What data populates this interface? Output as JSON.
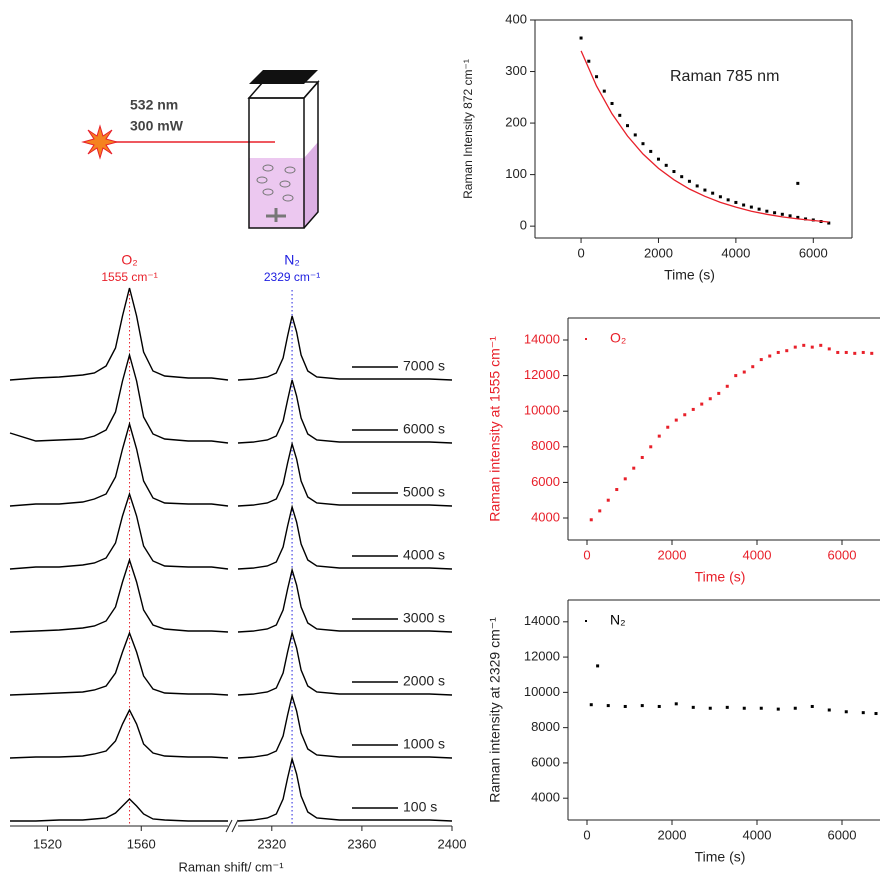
{
  "diagram": {
    "wavelength": "532 nm",
    "power": "300 mW"
  },
  "chart_data": [
    {
      "type": "spectra",
      "xlabel": "Raman shift/ cm⁻¹",
      "segments": [
        {
          "xlim": [
            1504,
            1597
          ],
          "xticks": [
            1520,
            1560
          ],
          "x": [
            1504,
            1515,
            1525,
            1535,
            1540,
            1545,
            1549,
            1552,
            1555,
            1558,
            1561,
            1565,
            1570,
            1580,
            1590,
            1597
          ]
        },
        {
          "xlim": [
            2305,
            2400
          ],
          "xticks": [
            2320,
            2360,
            2400
          ],
          "x": [
            2305,
            2312,
            2318,
            2322,
            2325,
            2327,
            2329,
            2331,
            2333,
            2336,
            2340,
            2350,
            2370,
            2390,
            2400
          ]
        }
      ],
      "peaks": [
        {
          "name": "O₂",
          "position": 1555,
          "position_label": "1555 cm⁻¹",
          "color": "#e8202a"
        },
        {
          "name": "N₂",
          "position": 2329,
          "position_label": "2329 cm⁻¹",
          "color": "#2020e0"
        }
      ],
      "series": [
        {
          "name": "7000 s",
          "color": "#000",
          "values": [
            [
              0,
              2,
              3,
              5,
              7,
              14,
              32,
              64,
              92,
              64,
              28,
              9,
              4,
              2,
              2,
              0
            ],
            [
              0,
              1,
              3,
              7,
              22,
              44,
              64,
              48,
              25,
              9,
              3,
              1,
              1,
              1,
              0
            ]
          ]
        },
        {
          "name": "6000 s",
          "color": "#000",
          "values": [
            [
              10,
              2,
              3,
              4,
              7,
              13,
              31,
              62,
              88,
              62,
              26,
              9,
              4,
              2,
              2,
              0
            ],
            [
              0,
              1,
              3,
              7,
              22,
              43,
              63,
              47,
              25,
              9,
              3,
              1,
              1,
              1,
              0
            ]
          ]
        },
        {
          "name": "5000 s",
          "color": "#000",
          "values": [
            [
              0,
              2,
              2,
              4,
              7,
              12,
              29,
              57,
              82,
              57,
              25,
              8,
              3,
              2,
              2,
              0
            ],
            [
              0,
              1,
              3,
              7,
              22,
              43,
              62,
              47,
              25,
              9,
              3,
              1,
              1,
              1,
              0
            ]
          ]
        },
        {
          "name": "4000 s",
          "color": "#000",
          "values": [
            [
              0,
              2,
              2,
              4,
              6,
              11,
              26,
              53,
              75,
              53,
              23,
              8,
              3,
              2,
              2,
              0
            ],
            [
              0,
              1,
              3,
              7,
              22,
              43,
              62,
              47,
              25,
              9,
              3,
              1,
              1,
              1,
              0
            ]
          ]
        },
        {
          "name": "3000 s",
          "color": "#000",
          "values": [
            [
              0,
              1,
              2,
              4,
              6,
              11,
              25,
              50,
              72,
              50,
              22,
              7,
              3,
              1,
              1,
              0
            ],
            [
              0,
              1,
              3,
              7,
              22,
              43,
              62,
              47,
              25,
              9,
              3,
              1,
              1,
              1,
              0
            ]
          ]
        },
        {
          "name": "2000 s",
          "color": "#000",
          "values": [
            [
              0,
              1,
              2,
              3,
              5,
              9,
              22,
              43,
              62,
              43,
              19,
              6,
              2,
              1,
              1,
              0
            ],
            [
              0,
              1,
              3,
              7,
              22,
              43,
              62,
              47,
              25,
              9,
              3,
              1,
              1,
              1,
              0
            ]
          ]
        },
        {
          "name": "1000 s",
          "color": "#000",
          "values": [
            [
              0,
              1,
              1,
              2,
              4,
              7,
              17,
              34,
              48,
              34,
              14,
              5,
              2,
              1,
              1,
              0
            ],
            [
              0,
              1,
              3,
              7,
              22,
              43,
              62,
              47,
              25,
              9,
              3,
              1,
              1,
              1,
              0
            ]
          ]
        },
        {
          "name": "100 s",
          "color": "#000",
          "values": [
            [
              0,
              0,
              1,
              1,
              2,
              3,
              8,
              15,
              22,
              15,
              7,
              2,
              1,
              0,
              0,
              0
            ],
            [
              0,
              1,
              3,
              7,
              22,
              43,
              62,
              47,
              25,
              9,
              3,
              1,
              1,
              1,
              0
            ]
          ]
        }
      ]
    },
    {
      "type": "scatter",
      "annotation": "Raman 785 nm",
      "xlabel": "Time (s)",
      "ylabel": "Raman Intensity 872 cm⁻¹",
      "axis_color": "#222",
      "xlim": [
        -1190,
        7000
      ],
      "ylim": [
        -23,
        400
      ],
      "xticks": [
        0,
        2000,
        4000,
        6000
      ],
      "yticks": [
        0,
        100,
        200,
        300,
        400
      ],
      "x": [
        0,
        200,
        400,
        600,
        800,
        1000,
        1200,
        1400,
        1600,
        1800,
        2000,
        2200,
        2400,
        2600,
        2800,
        3000,
        3200,
        3400,
        3600,
        3800,
        4000,
        4200,
        4400,
        4600,
        4800,
        5000,
        5200,
        5400,
        5600,
        5800,
        6000,
        6200,
        6400,
        5600
      ],
      "series": [
        {
          "mode": "markers",
          "color": "#000",
          "values": [
            365,
            320,
            290,
            262,
            238,
            215,
            195,
            177,
            160,
            145,
            130,
            118,
            106,
            96,
            87,
            78,
            70,
            64,
            57,
            51,
            46,
            41,
            37,
            33,
            29,
            26,
            23,
            20,
            17,
            14,
            12,
            9,
            6,
            83
          ]
        },
        {
          "mode": "line",
          "color": "#e8202a",
          "x": [
            0,
            400,
            800,
            1200,
            1600,
            2000,
            2400,
            2800,
            3200,
            3600,
            4000,
            4400,
            4800,
            5200,
            5600,
            6000,
            6400
          ],
          "values": [
            340,
            272,
            218,
            175,
            140,
            112,
            90,
            72,
            58,
            46,
            37,
            29,
            23,
            18,
            14,
            11,
            8
          ]
        }
      ]
    },
    {
      "type": "scatter",
      "xlabel": "Time (s)",
      "ylabel": "Raman intensity at 1555 cm⁻¹",
      "legend": "upper left",
      "axis_color": "#e8202a",
      "xlim": [
        -447,
        6894
      ],
      "ylim": [
        2764,
        15236
      ],
      "xticks": [
        0,
        2000,
        4000,
        6000
      ],
      "yticks": [
        4000,
        6000,
        8000,
        10000,
        12000,
        14000
      ],
      "x": [
        100,
        300,
        500,
        700,
        900,
        1100,
        1300,
        1500,
        1700,
        1900,
        2100,
        2300,
        2500,
        2700,
        2900,
        3100,
        3300,
        3500,
        3700,
        3900,
        4100,
        4300,
        4500,
        4700,
        4900,
        5100,
        5300,
        5500,
        5700,
        5900,
        6100,
        6300,
        6500,
        6700
      ],
      "series": [
        {
          "name": "O₂",
          "mode": "markers",
          "color": "#e8202a",
          "values": [
            3900,
            4400,
            5000,
            5600,
            6200,
            6800,
            7400,
            8000,
            8600,
            9100,
            9500,
            9800,
            10100,
            10400,
            10700,
            11000,
            11400,
            12000,
            12200,
            12500,
            12900,
            13100,
            13300,
            13400,
            13600,
            13700,
            13600,
            13700,
            13500,
            13300,
            13300,
            13250,
            13300,
            13250
          ]
        }
      ]
    },
    {
      "type": "scatter",
      "xlabel": "Time (s)",
      "ylabel": "Raman intensity at 2329 cm⁻¹",
      "legend": "upper left",
      "axis_color": "#222",
      "xlim": [
        -447,
        6894
      ],
      "ylim": [
        2764,
        15236
      ],
      "xticks": [
        0,
        2000,
        4000,
        6000
      ],
      "yticks": [
        4000,
        6000,
        8000,
        10000,
        12000,
        14000
      ],
      "x": [
        100,
        250,
        500,
        900,
        1300,
        1700,
        2100,
        2500,
        2900,
        3300,
        3700,
        4100,
        4500,
        4900,
        5300,
        5700,
        6100,
        6500,
        6800
      ],
      "series": [
        {
          "name": "N₂",
          "mode": "markers",
          "color": "#000",
          "values": [
            9300,
            11500,
            9250,
            9200,
            9250,
            9200,
            9350,
            9150,
            9100,
            9150,
            9100,
            9100,
            9050,
            9100,
            9200,
            9000,
            8900,
            8850,
            8800
          ]
        }
      ]
    }
  ]
}
